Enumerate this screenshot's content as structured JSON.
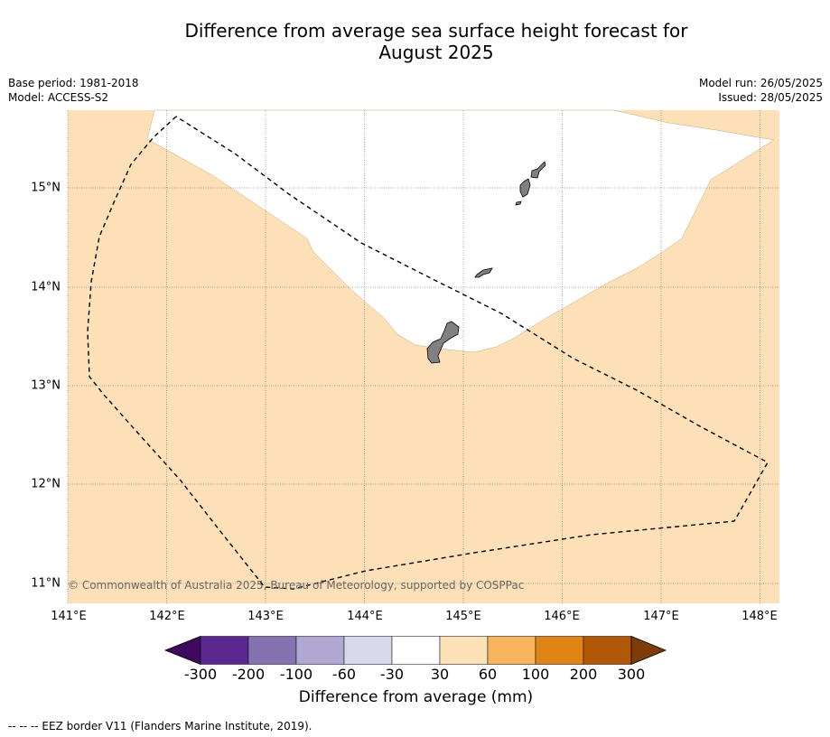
{
  "title_line1": "Difference from average sea surface height forecast for",
  "title_line2": "August 2025",
  "meta_left": [
    "Base period: 1981-2018",
    "Model: ACCESS-S2"
  ],
  "meta_right": [
    "Model run: 26/05/2025",
    "Issued: 28/05/2025"
  ],
  "copyright": "© Commonwealth of Australia 2025, Bureau of Meteorology, supported by COSPPac",
  "x_ticks": [
    "141°E",
    "142°E",
    "143°E",
    "144°E",
    "145°E",
    "146°E",
    "147°E",
    "148°E"
  ],
  "y_ticks": [
    "15°N",
    "14°N",
    "13°N",
    "12°N",
    "11°N"
  ],
  "colorbar": {
    "title": "Difference from average (mm)",
    "labels": [
      "-300",
      "-200",
      "-100",
      "-60",
      "-30",
      "30",
      "60",
      "100",
      "200",
      "300"
    ],
    "colors": [
      "#3f0a5e",
      "#5a2690",
      "#8373b0",
      "#b0a8d2",
      "#d9d9ec",
      "#ffffff",
      "#fde0b8",
      "#f9b55d",
      "#e08416",
      "#b35806",
      "#7f3b08"
    ]
  },
  "map_colors": {
    "anomaly_30_60": "#fde0b8",
    "neutral": "#ffffff",
    "land": "#808080"
  },
  "legend": "--  --  -- EEZ border V11 (Flanders Marine Institute, 2019)."
}
